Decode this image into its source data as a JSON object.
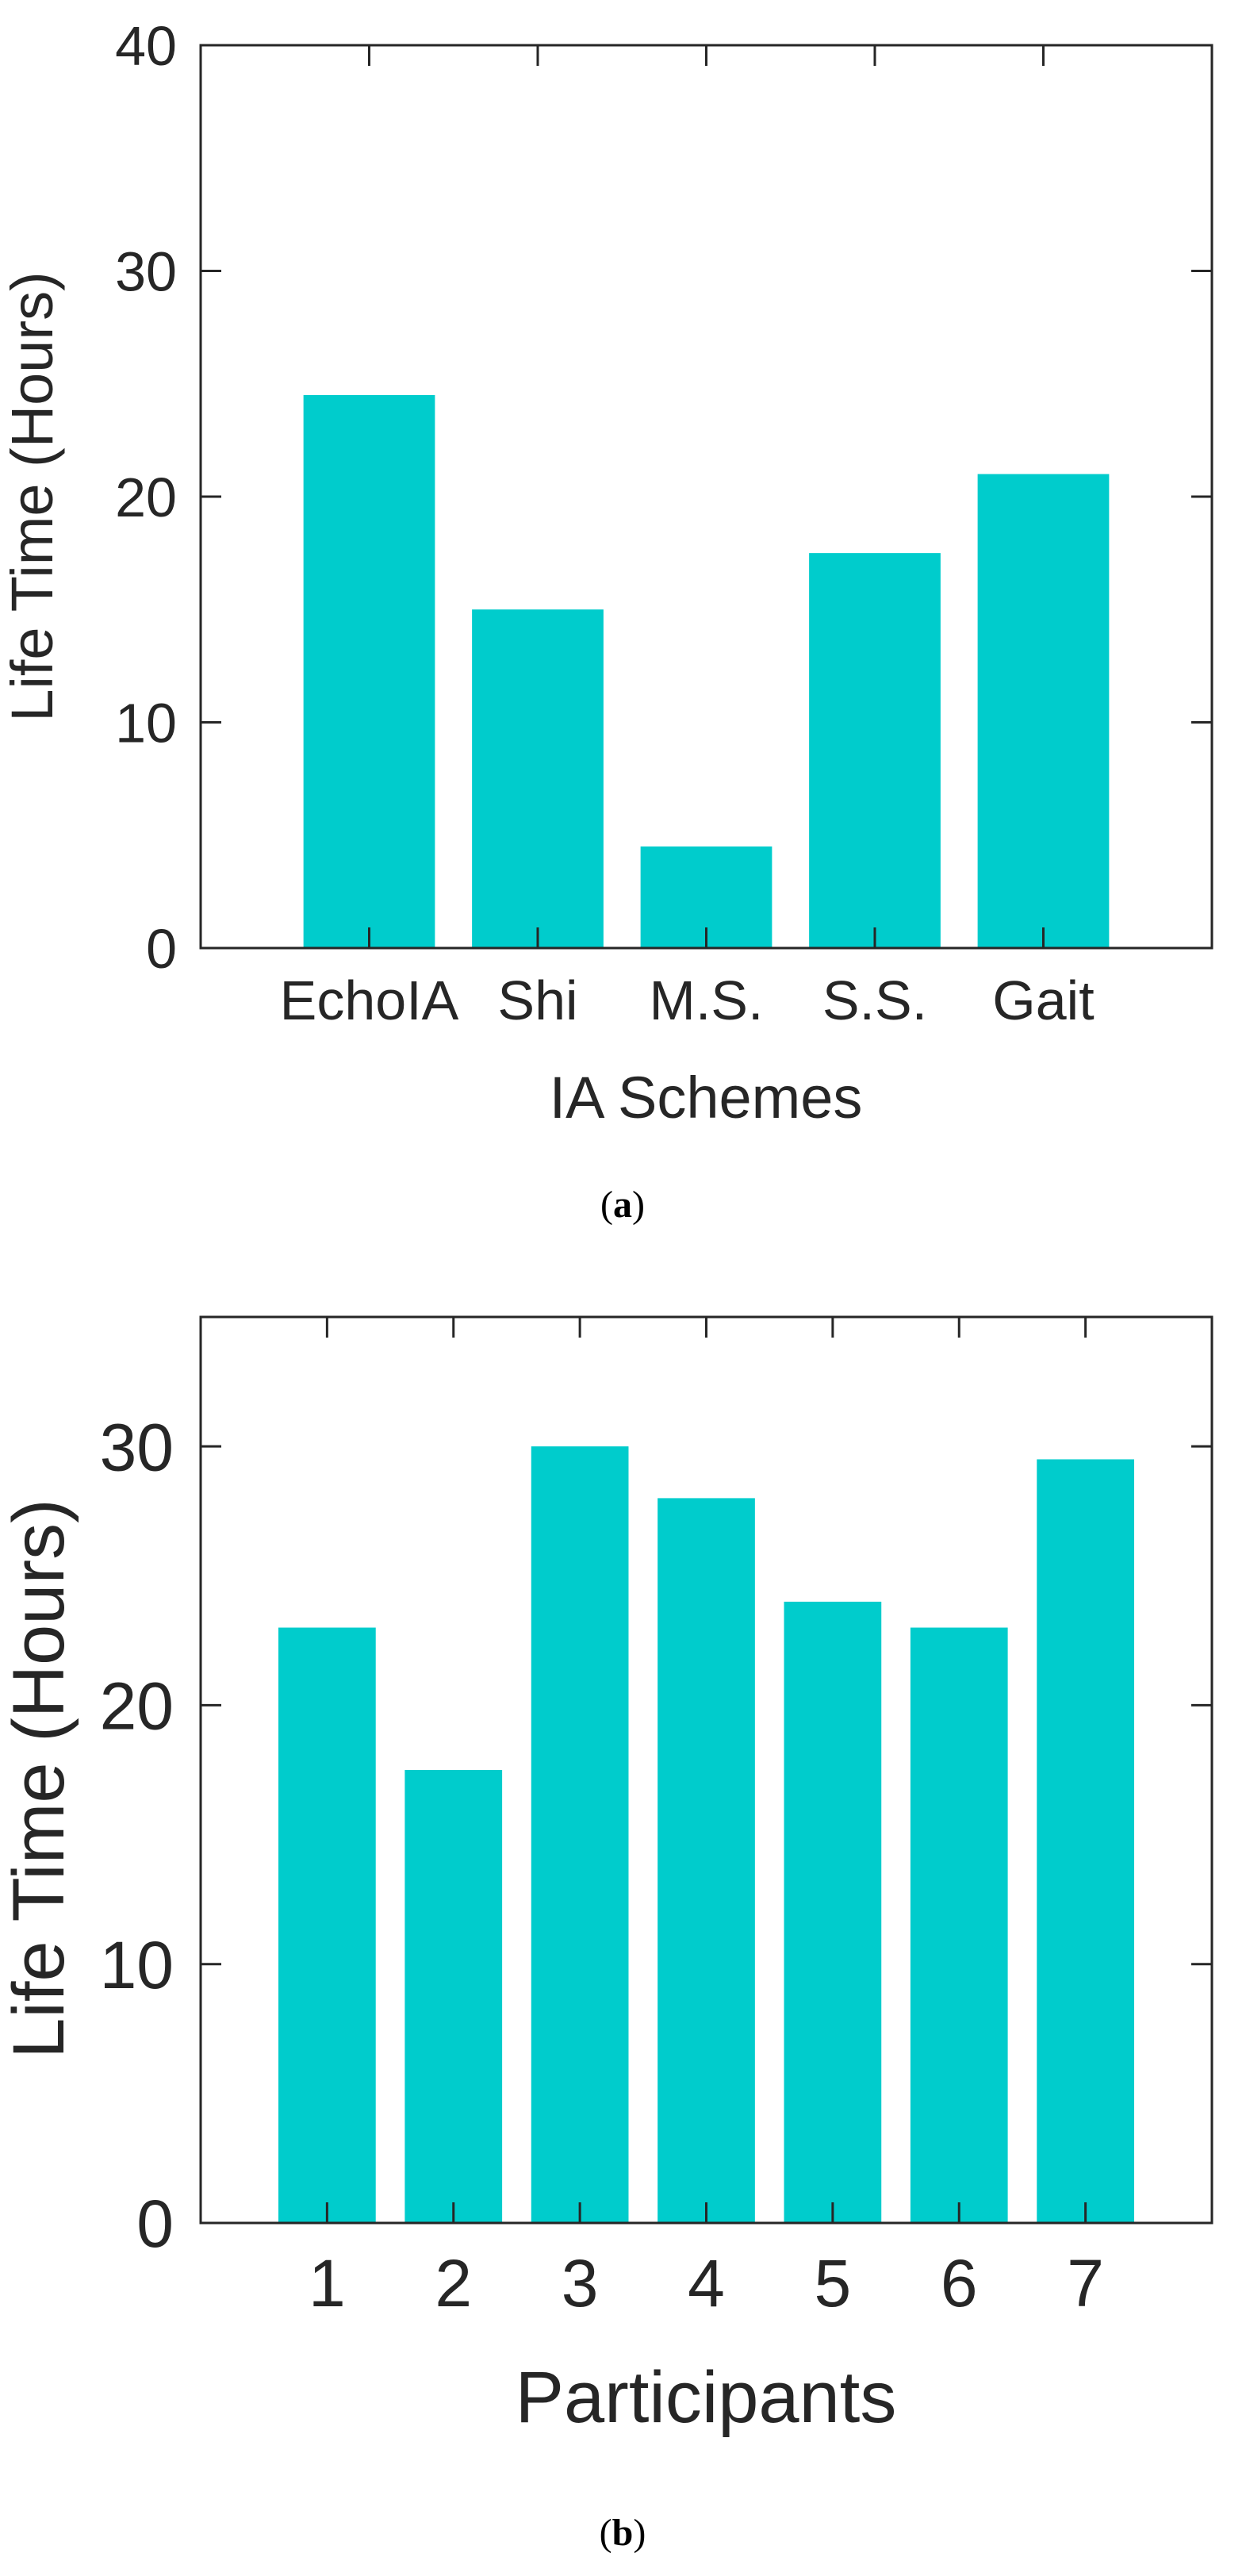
{
  "colors": {
    "bar": "#00cccc",
    "axis": "#262626",
    "background": "#ffffff"
  },
  "chart_data": [
    {
      "type": "bar",
      "categories": [
        "EchoIA",
        "Shi",
        "M.S.",
        "S.S.",
        "Gait"
      ],
      "values": [
        24.5,
        15,
        4.5,
        17.5,
        21
      ],
      "title": "",
      "xlabel": "IA Schemes",
      "ylabel": "Life Time (Hours)",
      "ylim": [
        0,
        40
      ],
      "yticks": [
        0,
        10,
        20,
        30,
        40
      ],
      "ytick_labels": [
        "0",
        "10",
        "20",
        "30",
        "40"
      ],
      "grid": false,
      "caption": {
        "open": "(",
        "letter": "a",
        "close": ")"
      }
    },
    {
      "type": "bar",
      "categories": [
        "1",
        "2",
        "3",
        "4",
        "5",
        "6",
        "7"
      ],
      "values": [
        23,
        17.5,
        30,
        28,
        24,
        23,
        29.5
      ],
      "title": "",
      "xlabel": "Participants",
      "ylabel": "Life Time (Hours)",
      "ylim": [
        0,
        35
      ],
      "yticks": [
        0,
        10,
        20,
        30
      ],
      "ytick_labels": [
        "0",
        "10",
        "20",
        "30"
      ],
      "grid": false,
      "caption": {
        "open": "(",
        "letter": "b",
        "close": ")"
      }
    }
  ]
}
